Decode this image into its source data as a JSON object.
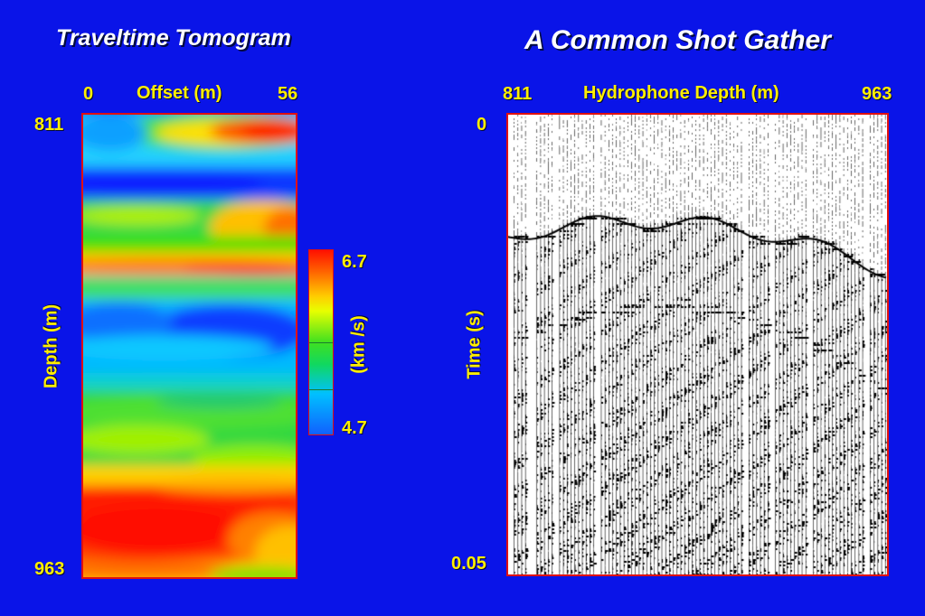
{
  "left_panel": {
    "title": "Traveltime Tomogram",
    "x_axis": {
      "label": "Offset (m)",
      "min_label": "0",
      "max_label": "56"
    },
    "y_axis": {
      "label": "Depth (m)",
      "min_label": "811",
      "max_label": "963"
    },
    "colorbar": {
      "max_label": "6.7",
      "min_label": "4.7",
      "unit_label": "(km /s)"
    }
  },
  "right_panel": {
    "title": "A Common Shot Gather",
    "x_axis": {
      "label": "Hydrophone Depth (m)",
      "min_label": "811",
      "max_label": "963"
    },
    "y_axis": {
      "label": "Time (s)",
      "min_label": "0",
      "max_label": "0.05"
    }
  },
  "colors": {
    "background": "#0a14e8",
    "title_text": "#ffffff",
    "label_text": "#ffee00",
    "frame_border": "#e01010"
  }
}
